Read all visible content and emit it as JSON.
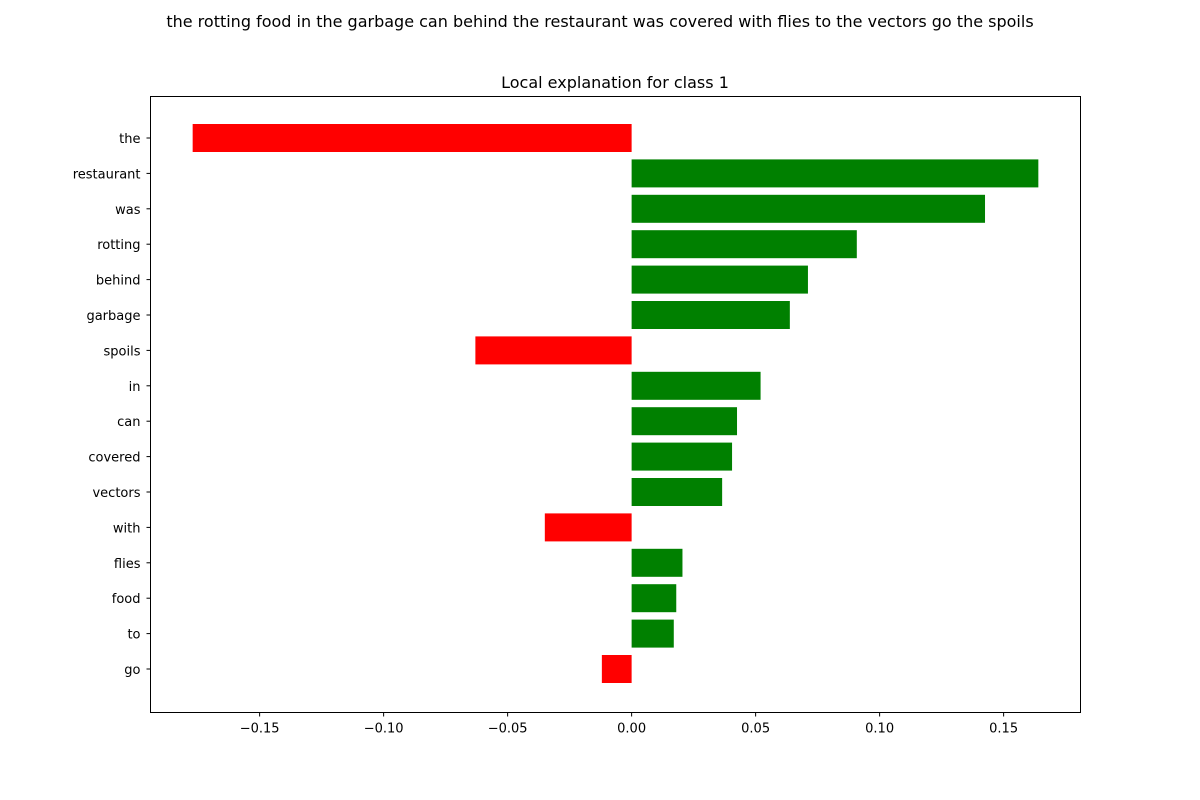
{
  "figure": {
    "suptitle": "the rotting food in the garbage can behind the restaurant was covered with flies to the vectors go the spoils"
  },
  "chart_data": {
    "type": "bar",
    "orientation": "horizontal",
    "title": "Local explanation for class 1",
    "xlabel": "",
    "ylabel": "",
    "xlim": [
      -0.194,
      0.181
    ],
    "xticks": [
      -0.15,
      -0.1,
      -0.05,
      0.0,
      0.05,
      0.1,
      0.15
    ],
    "xtick_labels": [
      "−0.15",
      "−0.10",
      "−0.05",
      "0.00",
      "0.05",
      "0.10",
      "0.15"
    ],
    "grid": false,
    "legend": "none",
    "positive_color": "#008000",
    "negative_color": "#ff0000",
    "categories": [
      "the",
      "restaurant",
      "was",
      "rotting",
      "behind",
      "garbage",
      "spoils",
      "in",
      "can",
      "covered",
      "vectors",
      "with",
      "flies",
      "food",
      "to",
      "go"
    ],
    "values": [
      -0.177,
      0.164,
      0.1425,
      0.0908,
      0.0711,
      0.0638,
      -0.063,
      0.052,
      0.0425,
      0.0405,
      0.0365,
      -0.035,
      0.0205,
      0.018,
      0.017,
      -0.012
    ]
  }
}
